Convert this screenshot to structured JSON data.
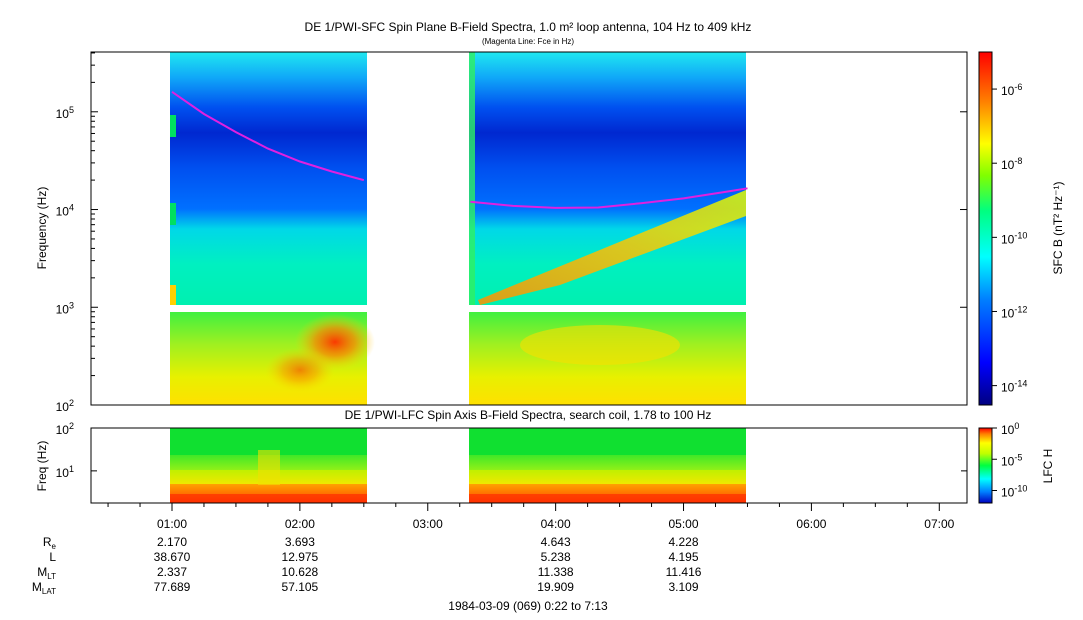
{
  "chart_data": [
    {
      "type": "heatmap",
      "title": "DE 1/PWI-SFC  Spin Plane B-Field Spectra, 1.0 m² loop antenna, 104 Hz to 409 kHz",
      "subtitle": "(Magenta Line: Fce in Hz)",
      "ylabel": "Frequency (Hz)",
      "y_scale": "log",
      "ylim": [
        100,
        409000
      ],
      "y_ticks": [
        "10^2",
        "10^3",
        "10^4",
        "10^5"
      ],
      "xlim": [
        "0:22",
        "7:13"
      ],
      "data_intervals": [
        [
          "1:00",
          "2:32"
        ],
        [
          "3:19",
          "5:30"
        ]
      ],
      "colorbar": {
        "label": "SFC B (nT² Hz⁻¹)",
        "scale": "log",
        "range": [
          3e-15,
          1e-05
        ],
        "ticks": [
          "10^-6",
          "10^-8",
          "10^-10",
          "10^-12",
          "10^-14"
        ]
      },
      "fce_line": {
        "name": "Fce",
        "segments": [
          {
            "points": [
              [
                "1:00",
                160000
              ],
              [
                "1:15",
                95000
              ],
              [
                "1:30",
                62000
              ],
              [
                "1:45",
                42000
              ],
              [
                "2:00",
                31000
              ],
              [
                "2:15",
                24500
              ],
              [
                "2:30",
                20000
              ]
            ]
          },
          {
            "points": [
              [
                "3:20",
                12000
              ],
              [
                "3:40",
                10900
              ],
              [
                "4:00",
                10400
              ],
              [
                "4:20",
                10500
              ],
              [
                "4:40",
                11600
              ],
              [
                "5:00",
                13000
              ],
              [
                "5:20",
                15200
              ],
              [
                "5:30",
                16500
              ]
            ]
          }
        ]
      }
    },
    {
      "type": "heatmap",
      "title": "DE 1/PWI-LFC  Spin Axis B-Field Spectra, search coil, 1.78 to 100 Hz",
      "ylabel": "Freq (Hz)",
      "y_scale": "log",
      "ylim": [
        1.78,
        100
      ],
      "y_ticks": [
        "10^1",
        "10^2"
      ],
      "xlim": [
        "0:22",
        "7:13"
      ],
      "x_ticks": [
        "01:00",
        "02:00",
        "03:00",
        "04:00",
        "05:00",
        "06:00",
        "07:00"
      ],
      "data_intervals": [
        [
          "1:00",
          "2:32"
        ],
        [
          "3:19",
          "5:30"
        ]
      ],
      "colorbar": {
        "label": "LFC H",
        "scale": "log",
        "ranges": [
          1e-12,
          1
        ],
        "ticks": [
          "10^0",
          "10^-5",
          "10^-10"
        ]
      }
    }
  ],
  "ephemeris": {
    "rows": [
      {
        "label": "R",
        "sub": "e",
        "values": [
          "2.170",
          "3.693",
          "",
          "4.643",
          "4.228",
          "",
          ""
        ]
      },
      {
        "label": "L",
        "sub": "",
        "values": [
          "38.670",
          "12.975",
          "",
          "5.238",
          "4.195",
          "",
          ""
        ]
      },
      {
        "label": "M",
        "sub": "LT",
        "values": [
          "2.337",
          "10.628",
          "",
          "11.338",
          "11.416",
          "",
          ""
        ]
      },
      {
        "label": "M",
        "sub": "LAT",
        "values": [
          "77.689",
          "57.105",
          "",
          "19.909",
          "3.109",
          "",
          ""
        ]
      }
    ]
  },
  "footer": "1984-03-09 (069) 0:22 to 7:13",
  "colors": {
    "fce_line": "#e020e0",
    "gap": "#ffffff"
  }
}
